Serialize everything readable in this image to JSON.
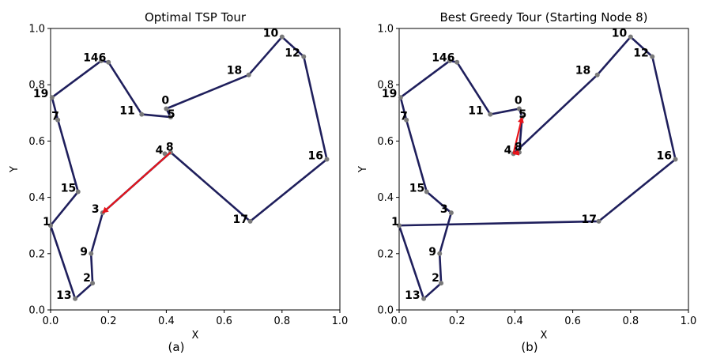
{
  "figure": {
    "captions": [
      "(a)",
      "(b)"
    ]
  },
  "chart_data": [
    {
      "type": "line",
      "title": "Optimal TSP Tour",
      "xlabel": "X",
      "ylabel": "Y",
      "xlim": [
        0.0,
        1.0
      ],
      "ylim": [
        0.0,
        1.0
      ],
      "xticks": [
        "0.0",
        "0.2",
        "0.4",
        "0.6",
        "0.8",
        "1.0"
      ],
      "yticks": [
        "0.0",
        "0.2",
        "0.4",
        "0.6",
        "0.8",
        "1.0"
      ],
      "line_color": "#1f1f5c",
      "arrow_color": "#e8141a",
      "nodes": [
        {
          "id": "0",
          "x": 0.4,
          "y": 0.715
        },
        {
          "id": "1",
          "x": 0.0,
          "y": 0.3
        },
        {
          "id": "2",
          "x": 0.145,
          "y": 0.095
        },
        {
          "id": "3",
          "x": 0.18,
          "y": 0.345
        },
        {
          "id": "4",
          "x": 0.395,
          "y": 0.555
        },
        {
          "id": "5",
          "x": 0.415,
          "y": 0.685
        },
        {
          "id": "6",
          "x": 0.2,
          "y": 0.88
        },
        {
          "id": "7",
          "x": 0.025,
          "y": 0.675
        },
        {
          "id": "8",
          "x": 0.415,
          "y": 0.56
        },
        {
          "id": "9",
          "x": 0.14,
          "y": 0.2
        },
        {
          "id": "10",
          "x": 0.8,
          "y": 0.97
        },
        {
          "id": "11",
          "x": 0.315,
          "y": 0.695
        },
        {
          "id": "12",
          "x": 0.875,
          "y": 0.9
        },
        {
          "id": "13",
          "x": 0.085,
          "y": 0.04
        },
        {
          "id": "14",
          "x": 0.175,
          "y": 0.885
        },
        {
          "id": "15",
          "x": 0.095,
          "y": 0.42
        },
        {
          "id": "16",
          "x": 0.955,
          "y": 0.535
        },
        {
          "id": "17",
          "x": 0.69,
          "y": 0.315
        },
        {
          "id": "18",
          "x": 0.685,
          "y": 0.835
        },
        {
          "id": "19",
          "x": 0.005,
          "y": 0.755
        }
      ],
      "tour": [
        "8",
        "17",
        "16",
        "12",
        "10",
        "18",
        "0",
        "5",
        "11",
        "6",
        "14",
        "19",
        "7",
        "15",
        "1",
        "13",
        "2",
        "9",
        "3"
      ],
      "arrow": {
        "from": "8",
        "to": "3"
      },
      "labels": [
        {
          "text": "0",
          "node": "0"
        },
        {
          "text": "5",
          "node": "5"
        },
        {
          "text": "11",
          "node": "11"
        },
        {
          "text": "146",
          "node": "6"
        },
        {
          "text": "19",
          "node": "19"
        },
        {
          "text": "7",
          "node": "7"
        },
        {
          "text": "15",
          "node": "15"
        },
        {
          "text": "1",
          "node": "1"
        },
        {
          "text": "13",
          "node": "13"
        },
        {
          "text": "2",
          "node": "2"
        },
        {
          "text": "9",
          "node": "9"
        },
        {
          "text": "3",
          "node": "3"
        },
        {
          "text": "4",
          "node": "4"
        },
        {
          "text": "8",
          "node": "8"
        },
        {
          "text": "17",
          "node": "17"
        },
        {
          "text": "16",
          "node": "16"
        },
        {
          "text": "12",
          "node": "12"
        },
        {
          "text": "10",
          "node": "10"
        },
        {
          "text": "18",
          "node": "18"
        }
      ]
    },
    {
      "type": "line",
      "title": "Best Greedy Tour (Starting Node 8)",
      "xlabel": "X",
      "ylabel": "Y",
      "xlim": [
        0.0,
        1.0
      ],
      "ylim": [
        0.0,
        1.0
      ],
      "xticks": [
        "0.0",
        "0.2",
        "0.4",
        "0.6",
        "0.8",
        "1.0"
      ],
      "yticks": [
        "0.0",
        "0.2",
        "0.4",
        "0.6",
        "0.8",
        "1.0"
      ],
      "line_color": "#1f1f5c",
      "arrow_color": "#e8141a",
      "nodes": [
        {
          "id": "0",
          "x": 0.415,
          "y": 0.715
        },
        {
          "id": "1",
          "x": 0.0,
          "y": 0.3
        },
        {
          "id": "2",
          "x": 0.145,
          "y": 0.095
        },
        {
          "id": "3",
          "x": 0.18,
          "y": 0.345
        },
        {
          "id": "4",
          "x": 0.395,
          "y": 0.555
        },
        {
          "id": "5",
          "x": 0.425,
          "y": 0.685
        },
        {
          "id": "6",
          "x": 0.2,
          "y": 0.88
        },
        {
          "id": "7",
          "x": 0.025,
          "y": 0.675
        },
        {
          "id": "8",
          "x": 0.415,
          "y": 0.56
        },
        {
          "id": "9",
          "x": 0.14,
          "y": 0.2
        },
        {
          "id": "10",
          "x": 0.8,
          "y": 0.97
        },
        {
          "id": "11",
          "x": 0.315,
          "y": 0.695
        },
        {
          "id": "12",
          "x": 0.875,
          "y": 0.9
        },
        {
          "id": "13",
          "x": 0.085,
          "y": 0.04
        },
        {
          "id": "14",
          "x": 0.175,
          "y": 0.885
        },
        {
          "id": "15",
          "x": 0.095,
          "y": 0.42
        },
        {
          "id": "16",
          "x": 0.955,
          "y": 0.535
        },
        {
          "id": "17",
          "x": 0.69,
          "y": 0.315
        },
        {
          "id": "18",
          "x": 0.685,
          "y": 0.835
        },
        {
          "id": "19",
          "x": 0.005,
          "y": 0.755
        }
      ],
      "tour": [
        "8",
        "5",
        "0",
        "11",
        "6",
        "14",
        "19",
        "7",
        "15",
        "3",
        "9",
        "2",
        "13",
        "1",
        "17",
        "16",
        "12",
        "10",
        "18",
        "4"
      ],
      "arrow": {
        "from": "4",
        "to": "5"
      },
      "arrow2": {
        "from": "8",
        "to": "4"
      },
      "labels": [
        {
          "text": "0",
          "node": "0"
        },
        {
          "text": "5",
          "node": "5"
        },
        {
          "text": "11",
          "node": "11"
        },
        {
          "text": "146",
          "node": "6"
        },
        {
          "text": "19",
          "node": "19"
        },
        {
          "text": "7",
          "node": "7"
        },
        {
          "text": "15",
          "node": "15"
        },
        {
          "text": "1",
          "node": "1"
        },
        {
          "text": "13",
          "node": "13"
        },
        {
          "text": "2",
          "node": "2"
        },
        {
          "text": "9",
          "node": "9"
        },
        {
          "text": "3",
          "node": "3"
        },
        {
          "text": "4",
          "node": "4"
        },
        {
          "text": "8",
          "node": "8"
        },
        {
          "text": "17",
          "node": "17"
        },
        {
          "text": "16",
          "node": "16"
        },
        {
          "text": "12",
          "node": "12"
        },
        {
          "text": "10",
          "node": "10"
        },
        {
          "text": "18",
          "node": "18"
        }
      ]
    }
  ]
}
